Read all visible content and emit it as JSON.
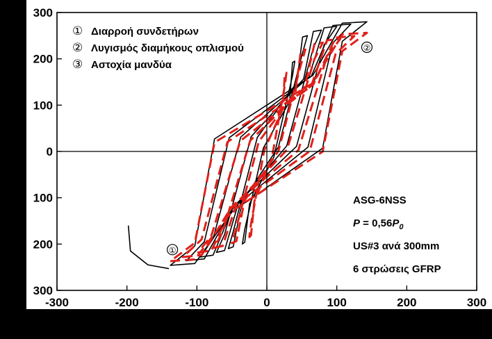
{
  "chart_data": {
    "type": "line",
    "title": "",
    "xlabel": "",
    "ylabel": "",
    "xlim": [
      -300,
      300
    ],
    "ylim": [
      -300,
      300
    ],
    "xticks": [
      -300,
      -200,
      -100,
      0,
      100,
      200,
      300
    ],
    "yticks": [
      300,
      200,
      100,
      0,
      100,
      200,
      300
    ],
    "grid": false,
    "legend": {
      "placement": "top-left",
      "entries": [
        {
          "marker": "①",
          "label": "Διαρροή συνδετήρων"
        },
        {
          "marker": "②",
          "label": "Λυγισμός διαμήκους οπλισμού"
        },
        {
          "marker": "③",
          "label": "Αστοχία μανδύα"
        }
      ]
    },
    "annotations": {
      "specimen": "ASG-6NSS",
      "axial_load_prefix": "P",
      "axial_load_value": " = 0,56",
      "axial_load_symbol": "P",
      "axial_load_subscript": "0",
      "stirrups": "US#3 ανά 300mm",
      "jacket": "6 στρώσεις GFRP"
    },
    "point_markers": [
      {
        "label": "①",
        "x": -135,
        "y": -212
      },
      {
        "label": "②",
        "x": 143,
        "y": 225
      }
    ],
    "series": [
      {
        "style": "solid",
        "color": "#000000",
        "loops": [
          {
            "peak": [
              40,
              195
            ],
            "valley": [
              -35,
              -200
            ]
          },
          {
            "peak": [
              58,
              250
            ],
            "valley": [
              -55,
              -210
            ]
          },
          {
            "peak": [
              78,
              262
            ],
            "valley": [
              -72,
              -218
            ]
          },
          {
            "peak": [
              100,
              270
            ],
            "valley": [
              -95,
              -228
            ]
          },
          {
            "peak": [
              120,
              275
            ],
            "valley": [
              -115,
              -236
            ]
          },
          {
            "peak": [
              143,
              280
            ],
            "valley": [
              -138,
              -246
            ]
          }
        ],
        "tail": [
          [
            -140,
            -253
          ],
          [
            -170,
            -245
          ],
          [
            -195,
            -215
          ],
          [
            -198,
            -160
          ]
        ]
      },
      {
        "style": "dashed",
        "color": "#e0201a",
        "loops": [
          {
            "peak": [
              28,
              170
            ],
            "valley": [
              -25,
              -185
            ]
          },
          {
            "peak": [
              55,
              220
            ],
            "valley": [
              -50,
              -198
            ]
          },
          {
            "peak": [
              80,
              235
            ],
            "valley": [
              -75,
              -208
            ]
          },
          {
            "peak": [
              105,
              243
            ],
            "valley": [
              -98,
              -218
            ]
          },
          {
            "peak": [
              125,
              249
            ],
            "valley": [
              -120,
              -228
            ]
          },
          {
            "peak": [
              143,
              256
            ],
            "valley": [
              -138,
              -237
            ]
          }
        ]
      }
    ]
  }
}
